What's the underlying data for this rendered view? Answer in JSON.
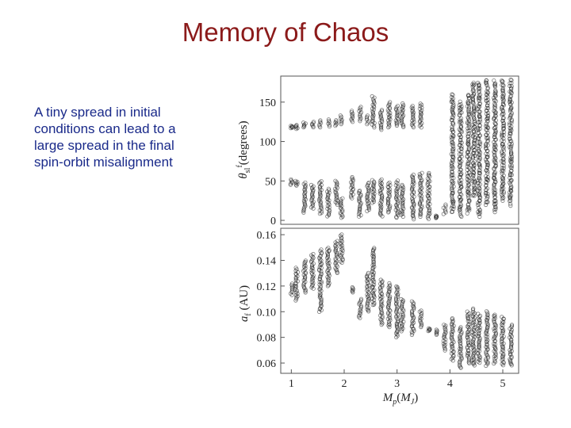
{
  "slide": {
    "title": "Memory of Chaos",
    "body": "A tiny spread in initial conditions can lead to a large spread in the final spin-orbit misalignment"
  },
  "colors": {
    "title": "#8b1a1a",
    "body": "#1a2a8a",
    "points": "#111111"
  },
  "chart_data": [
    {
      "type": "scatter",
      "panel": "top",
      "ylabel": "θ^f_sl(degrees)",
      "xlim": [
        0.8,
        5.3
      ],
      "ylim": [
        -5,
        183
      ],
      "yticks": [
        0,
        50,
        100,
        150
      ],
      "x": [
        1.0,
        1.1,
        1.25,
        1.4,
        1.55,
        1.7,
        1.85,
        1.95,
        2.15,
        2.3,
        2.45,
        2.55,
        2.7,
        2.85,
        3.0,
        3.1,
        3.3,
        3.45,
        3.6,
        3.75,
        3.9,
        4.05,
        4.2,
        4.35,
        4.45,
        4.55,
        4.7,
        4.85,
        5.0,
        5.15
      ],
      "columns": [
        {
          "x": 1.0,
          "ranges": [
            [
              117,
              120
            ],
            [
              45,
              52
            ]
          ]
        },
        {
          "x": 1.1,
          "ranges": [
            [
              116,
              121
            ],
            [
              44,
              50
            ]
          ]
        },
        {
          "x": 1.25,
          "ranges": [
            [
              118,
              124
            ],
            [
              10,
              48
            ]
          ]
        },
        {
          "x": 1.4,
          "ranges": [
            [
              118,
              125
            ],
            [
              15,
              45
            ]
          ]
        },
        {
          "x": 1.55,
          "ranges": [
            [
              118,
              127
            ],
            [
              8,
              50
            ]
          ]
        },
        {
          "x": 1.7,
          "ranges": [
            [
              119,
              128
            ],
            [
              5,
              40
            ]
          ]
        },
        {
          "x": 1.85,
          "ranges": [
            [
              120,
              127
            ],
            [
              20,
              50
            ]
          ]
        },
        {
          "x": 1.95,
          "ranges": [
            [
              122,
              133
            ],
            [
              3,
              28
            ]
          ]
        },
        {
          "x": 2.15,
          "ranges": [
            [
              125,
              139
            ],
            [
              28,
              55
            ]
          ]
        },
        {
          "x": 2.3,
          "ranges": [
            [
              126,
              144
            ],
            [
              5,
              38
            ]
          ]
        },
        {
          "x": 2.45,
          "ranges": [
            [
              122,
              133
            ],
            [
              12,
              48
            ]
          ]
        },
        {
          "x": 2.55,
          "ranges": [
            [
              118,
              157
            ],
            [
              22,
              51
            ]
          ]
        },
        {
          "x": 2.7,
          "ranges": [
            [
              115,
              140
            ],
            [
              5,
              52
            ]
          ]
        },
        {
          "x": 2.85,
          "ranges": [
            [
              118,
              150
            ],
            [
              10,
              48
            ]
          ]
        },
        {
          "x": 3.0,
          "ranges": [
            [
              120,
              145
            ],
            [
              3,
              50
            ]
          ]
        },
        {
          "x": 3.1,
          "ranges": [
            [
              118,
              148
            ],
            [
              5,
              45
            ]
          ]
        },
        {
          "x": 3.3,
          "ranges": [
            [
              118,
              145
            ],
            [
              2,
              58
            ]
          ]
        },
        {
          "x": 3.45,
          "ranges": [
            [
              118,
              148
            ],
            [
              5,
              60
            ]
          ]
        },
        {
          "x": 3.6,
          "ranges": [
            [
              2,
              60
            ]
          ]
        },
        {
          "x": 3.75,
          "ranges": [
            [
              3,
              6
            ]
          ]
        },
        {
          "x": 3.9,
          "ranges": [
            [
              8,
              20
            ]
          ]
        },
        {
          "x": 4.05,
          "ranges": [
            [
              10,
              160
            ]
          ]
        },
        {
          "x": 4.2,
          "ranges": [
            [
              5,
              150
            ]
          ]
        },
        {
          "x": 4.35,
          "ranges": [
            [
              10,
              160
            ]
          ]
        },
        {
          "x": 4.45,
          "ranges": [
            [
              30,
              175
            ]
          ]
        },
        {
          "x": 4.55,
          "ranges": [
            [
              5,
              175
            ]
          ]
        },
        {
          "x": 4.7,
          "ranges": [
            [
              20,
              178
            ]
          ]
        },
        {
          "x": 4.85,
          "ranges": [
            [
              10,
              176
            ]
          ]
        },
        {
          "x": 5.0,
          "ranges": [
            [
              25,
              178
            ]
          ]
        },
        {
          "x": 5.15,
          "ranges": [
            [
              20,
              178
            ]
          ]
        }
      ]
    },
    {
      "type": "scatter",
      "panel": "bottom",
      "ylabel": "a_f (AU)",
      "xlabel": "M_p(M_J)",
      "xlim": [
        0.8,
        5.3
      ],
      "ylim": [
        0.052,
        0.165
      ],
      "yticks": [
        0.06,
        0.08,
        0.1,
        0.12,
        0.14,
        0.16
      ],
      "xticks": [
        1,
        2,
        3,
        4,
        5
      ],
      "x": [
        1.0,
        1.1,
        1.25,
        1.4,
        1.55,
        1.7,
        1.85,
        1.95,
        2.15,
        2.3,
        2.45,
        2.55,
        2.7,
        2.85,
        3.0,
        3.1,
        3.3,
        3.45,
        3.6,
        3.75,
        3.9,
        4.05,
        4.2,
        4.35,
        4.45,
        4.55,
        4.7,
        4.85,
        5.0,
        5.15
      ],
      "columns": [
        {
          "x": 1.0,
          "ranges": [
            [
              0.113,
              0.122
            ]
          ]
        },
        {
          "x": 1.1,
          "ranges": [
            [
              0.109,
              0.134
            ]
          ]
        },
        {
          "x": 1.25,
          "ranges": [
            [
              0.115,
              0.14
            ]
          ]
        },
        {
          "x": 1.4,
          "ranges": [
            [
              0.118,
              0.145
            ]
          ]
        },
        {
          "x": 1.55,
          "ranges": [
            [
              0.1,
              0.148
            ]
          ]
        },
        {
          "x": 1.7,
          "ranges": [
            [
              0.12,
              0.15
            ]
          ]
        },
        {
          "x": 1.85,
          "ranges": [
            [
              0.13,
              0.155
            ]
          ]
        },
        {
          "x": 1.95,
          "ranges": [
            [
              0.138,
              0.16
            ]
          ]
        },
        {
          "x": 2.15,
          "ranges": [
            [
              0.115,
              0.119
            ]
          ]
        },
        {
          "x": 2.3,
          "ranges": [
            [
              0.095,
              0.11
            ]
          ]
        },
        {
          "x": 2.45,
          "ranges": [
            [
              0.1,
              0.13
            ]
          ]
        },
        {
          "x": 2.55,
          "ranges": [
            [
              0.105,
              0.15
            ]
          ]
        },
        {
          "x": 2.7,
          "ranges": [
            [
              0.09,
              0.125
            ]
          ]
        },
        {
          "x": 2.85,
          "ranges": [
            [
              0.088,
              0.122
            ]
          ]
        },
        {
          "x": 3.0,
          "ranges": [
            [
              0.08,
              0.12
            ]
          ]
        },
        {
          "x": 3.1,
          "ranges": [
            [
              0.085,
              0.11
            ]
          ]
        },
        {
          "x": 3.3,
          "ranges": [
            [
              0.082,
              0.108
            ]
          ]
        },
        {
          "x": 3.45,
          "ranges": [
            [
              0.088,
              0.101
            ]
          ]
        },
        {
          "x": 3.6,
          "ranges": [
            [
              0.085,
              0.087
            ]
          ]
        },
        {
          "x": 3.75,
          "ranges": [
            [
              0.082,
              0.086
            ]
          ]
        },
        {
          "x": 3.9,
          "ranges": [
            [
              0.07,
              0.09
            ]
          ]
        },
        {
          "x": 4.05,
          "ranges": [
            [
              0.062,
              0.095
            ]
          ]
        },
        {
          "x": 4.2,
          "ranges": [
            [
              0.056,
              0.088
            ]
          ]
        },
        {
          "x": 4.35,
          "ranges": [
            [
              0.06,
              0.1
            ]
          ]
        },
        {
          "x": 4.45,
          "ranges": [
            [
              0.058,
              0.102
            ]
          ]
        },
        {
          "x": 4.55,
          "ranges": [
            [
              0.06,
              0.098
            ]
          ]
        },
        {
          "x": 4.7,
          "ranges": [
            [
              0.058,
              0.1
            ]
          ]
        },
        {
          "x": 4.85,
          "ranges": [
            [
              0.06,
              0.098
            ]
          ]
        },
        {
          "x": 5.0,
          "ranges": [
            [
              0.058,
              0.096
            ]
          ]
        },
        {
          "x": 5.15,
          "ranges": [
            [
              0.058,
              0.09
            ]
          ]
        }
      ]
    }
  ]
}
